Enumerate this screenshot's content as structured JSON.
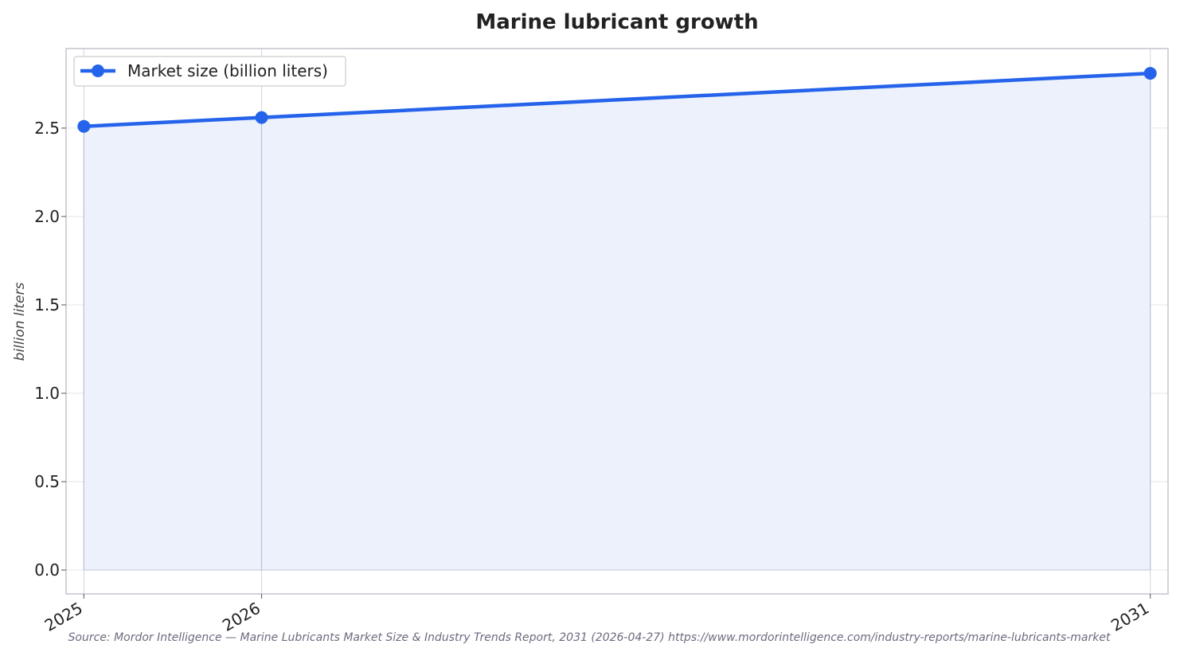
{
  "chart_data": {
    "type": "area",
    "title": "Marine lubricant growth",
    "xlabel": "",
    "ylabel": "billion liters",
    "x": [
      "2025",
      "2026",
      "2031"
    ],
    "x_values": [
      2025,
      2026,
      2031
    ],
    "series": [
      {
        "name": "Market size (billion liters)",
        "values": [
          2.51,
          2.56,
          2.81
        ],
        "color": "#2563eb",
        "fill_color": "#ecf1fc"
      }
    ],
    "y_ticks": [
      "0.0",
      "0.5",
      "1.0",
      "1.5",
      "2.0",
      "2.5"
    ],
    "y_tick_values": [
      0,
      0.5,
      1.0,
      1.5,
      2.0,
      2.5
    ],
    "ylim": [
      -0.135,
      2.95
    ],
    "xlim": [
      2024.9,
      2031.1
    ],
    "grid": true,
    "legend": "top-left",
    "source": "Source: Mordor Intelligence — Marine Lubricants Market Size & Industry Trends Report, 2031 (2026-04-27) https://www.mordorintelligence.com/industry-reports/marine-lubricants-market"
  }
}
